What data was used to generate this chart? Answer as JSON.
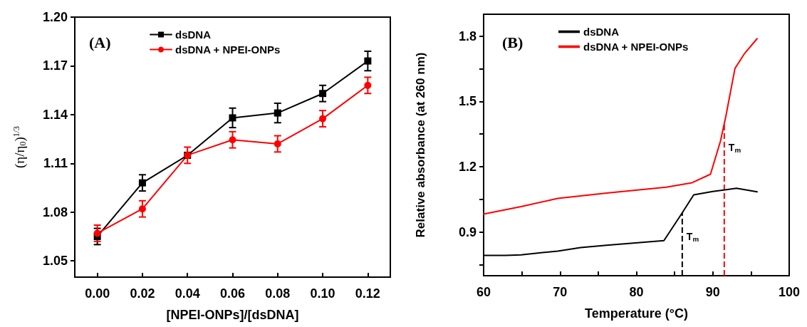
{
  "chart_data": [
    {
      "type": "line",
      "annotations": [
        "(A)"
      ],
      "xlabel": "[NPEI-ONPs]/[dsDNA]",
      "ylabel": "(η/η$_{0}$)$^{1/3}$",
      "x": [
        0.0,
        0.02,
        0.04,
        0.06,
        0.08,
        0.1,
        0.12
      ],
      "xlim": [
        -0.01,
        0.13
      ],
      "xticks": [
        {
          "value": 0,
          "label": "0.00"
        },
        {
          "value": 0.02,
          "label": "0.02"
        },
        {
          "value": 0.04,
          "label": "0.04"
        },
        {
          "value": 0.06,
          "label": "0.06"
        },
        {
          "value": 0.08,
          "label": "0.08"
        },
        {
          "value": 0.1,
          "label": "0.10"
        },
        {
          "value": 0.12,
          "label": "0.12"
        }
      ],
      "ylim": [
        1.04,
        1.2
      ],
      "yticks": [
        1.05,
        1.08,
        1.11,
        1.14,
        1.17,
        {
          "value": 1.2,
          "label": "1.20"
        }
      ],
      "legend": "top",
      "grid": false,
      "series": [
        {
          "name": "dsDNA",
          "color": "#000000",
          "marker": "square",
          "values": [
            1.065,
            1.098,
            1.115,
            1.138,
            1.141,
            1.153,
            1.173
          ],
          "errors": [
            0.005,
            0.005,
            null,
            0.006,
            0.006,
            0.005,
            0.006
          ]
        },
        {
          "name": "dsDNA + NPEI-ONPs",
          "color": "#ff0000",
          "marker": "circle",
          "values": [
            1.067,
            1.082,
            1.115,
            1.1245,
            1.122,
            1.1375,
            1.158
          ],
          "errors": [
            0.005,
            0.005,
            0.005,
            0.005,
            0.005,
            0.005,
            0.005
          ]
        }
      ]
    },
    {
      "type": "line",
      "annotations": [
        "(B)"
      ],
      "xlabel": "Temperature (°C)",
      "ylabel": "Relative absorbance (at 260 nm)",
      "xlim": [
        60,
        100
      ],
      "xticks": [
        60,
        {
          "value": 65,
          "label": null
        },
        70,
        {
          "value": 75,
          "label": null
        },
        80,
        {
          "value": 85,
          "label": null
        },
        90,
        {
          "value": 95,
          "label": null
        },
        100
      ],
      "ylim": [
        0.7,
        1.9
      ],
      "yticks": [
        {
          "value": 0.75,
          "label": null
        },
        0.9,
        {
          "value": 1.05,
          "label": null
        },
        1.2,
        {
          "value": 1.35,
          "label": null
        },
        1.5,
        {
          "value": 1.65,
          "label": null
        },
        1.8
      ],
      "legend": "top",
      "grid": false,
      "marker": "none",
      "series": [
        {
          "name": "dsDNA",
          "color": "#000000",
          "x": [
            60,
            62.9,
            64.9,
            69.7,
            72.7,
            76.1,
            83.6,
            85.8,
            87.5,
            90,
            93.1,
            95.8
          ],
          "values": [
            0.793,
            0.793,
            0.796,
            0.813,
            0.829,
            0.84,
            0.861,
            0.978,
            1.071,
            1.087,
            1.101,
            1.085
          ]
        },
        {
          "name": "dsDNA + NPEI-ONPs",
          "color": "#ff0000",
          "x": [
            60,
            64.9,
            69.7,
            76.1,
            83.9,
            87.3,
            89.7,
            91.0,
            91.7,
            92.9,
            94.1,
            95.8
          ],
          "values": [
            0.983,
            1.017,
            1.055,
            1.079,
            1.106,
            1.127,
            1.166,
            1.317,
            1.43,
            1.651,
            1.717,
            1.788
          ]
        }
      ],
      "ref_lines": [
        {
          "axis": "x",
          "value": 86.0,
          "label": "T$_{m}$",
          "color": "#000000",
          "line_style": "dashed"
        },
        {
          "axis": "x",
          "value": 91.5,
          "label": "T$_{m}$",
          "color": "#ff0000",
          "line_style": "dashed"
        }
      ]
    }
  ]
}
